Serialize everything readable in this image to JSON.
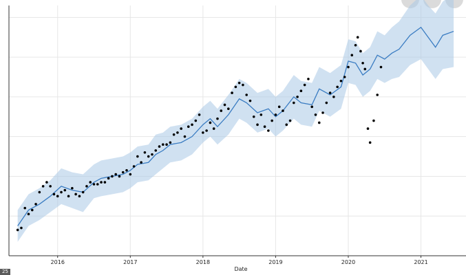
{
  "chart_data": {
    "type": "line",
    "title": "",
    "xlabel": "Date",
    "ylabel": "",
    "x_ticks": [
      "2016",
      "2017",
      "2018",
      "2019",
      "2020",
      "2021"
    ],
    "y_ticks": [
      "",
      "",
      "",
      "",
      "",
      ""
    ],
    "xlim": [
      2015.33,
      2021.62
    ],
    "ylim": [
      0,
      6.3
    ],
    "grid": true,
    "legend": "none",
    "colors": {
      "forecast": "#3a7cc2",
      "band": "#a9c9e6",
      "points": "#000000",
      "grid": "#e6e6e6"
    },
    "forecast": {
      "x": [
        2015.45,
        2015.6,
        2015.75,
        2015.9,
        2016.05,
        2016.2,
        2016.35,
        2016.5,
        2016.6,
        2016.75,
        2016.9,
        2017.0,
        2017.1,
        2017.25,
        2017.35,
        2017.45,
        2017.55,
        2017.7,
        2017.85,
        2018.0,
        2018.1,
        2018.2,
        2018.35,
        2018.5,
        2018.6,
        2018.75,
        2018.9,
        2019.0,
        2019.1,
        2019.25,
        2019.35,
        2019.5,
        2019.6,
        2019.75,
        2019.9,
        2020.0,
        2020.1,
        2020.2,
        2020.3,
        2020.4,
        2020.5,
        2020.6,
        2020.7,
        2020.85,
        2021.0,
        2021.1,
        2021.2,
        2021.3,
        2021.45
      ],
      "y": [
        0.75,
        1.15,
        1.3,
        1.5,
        1.75,
        1.65,
        1.6,
        1.85,
        1.95,
        2.0,
        2.05,
        2.15,
        2.3,
        2.35,
        2.55,
        2.65,
        2.8,
        2.85,
        3.0,
        3.3,
        3.45,
        3.25,
        3.55,
        3.95,
        3.85,
        3.6,
        3.7,
        3.5,
        3.65,
        4.0,
        3.85,
        3.8,
        4.2,
        4.05,
        4.25,
        4.9,
        4.85,
        4.55,
        4.7,
        5.05,
        4.95,
        5.1,
        5.2,
        5.55,
        5.75,
        5.5,
        5.25,
        5.55,
        5.65
      ]
    },
    "band": {
      "x": [
        2015.45,
        2015.6,
        2015.75,
        2015.9,
        2016.05,
        2016.2,
        2016.35,
        2016.5,
        2016.6,
        2016.75,
        2016.9,
        2017.0,
        2017.1,
        2017.25,
        2017.35,
        2017.45,
        2017.55,
        2017.7,
        2017.85,
        2018.0,
        2018.1,
        2018.2,
        2018.35,
        2018.5,
        2018.6,
        2018.75,
        2018.9,
        2019.0,
        2019.1,
        2019.25,
        2019.35,
        2019.5,
        2019.6,
        2019.75,
        2019.9,
        2020.0,
        2020.1,
        2020.2,
        2020.3,
        2020.4,
        2020.5,
        2020.6,
        2020.7,
        2020.85,
        2021.0,
        2021.1,
        2021.2,
        2021.3,
        2021.45
      ],
      "lower": [
        0.35,
        0.75,
        0.9,
        1.1,
        1.3,
        1.2,
        1.1,
        1.45,
        1.5,
        1.55,
        1.6,
        1.7,
        1.85,
        1.9,
        2.05,
        2.2,
        2.35,
        2.4,
        2.55,
        2.85,
        3.0,
        2.8,
        3.05,
        3.45,
        3.35,
        3.1,
        3.2,
        3.0,
        3.15,
        3.45,
        3.3,
        3.25,
        3.65,
        3.5,
        3.7,
        4.35,
        4.3,
        4.0,
        4.15,
        4.45,
        4.35,
        4.45,
        4.5,
        4.8,
        4.95,
        4.7,
        4.45,
        4.7,
        4.75
      ],
      "upper": [
        1.15,
        1.55,
        1.7,
        1.9,
        2.2,
        2.1,
        2.05,
        2.3,
        2.4,
        2.45,
        2.5,
        2.6,
        2.75,
        2.8,
        3.05,
        3.1,
        3.25,
        3.3,
        3.45,
        3.75,
        3.9,
        3.7,
        4.05,
        4.45,
        4.35,
        4.1,
        4.2,
        4.0,
        4.15,
        4.55,
        4.4,
        4.35,
        4.75,
        4.6,
        4.8,
        5.45,
        5.4,
        5.1,
        5.25,
        5.65,
        5.55,
        5.75,
        5.9,
        6.3,
        6.55,
        6.3,
        6.1,
        6.4,
        6.6
      ]
    },
    "observed": {
      "x": [
        2015.45,
        2015.5,
        2015.55,
        2015.6,
        2015.65,
        2015.7,
        2015.75,
        2015.8,
        2015.85,
        2015.9,
        2015.95,
        2016.0,
        2016.05,
        2016.1,
        2016.15,
        2016.2,
        2016.25,
        2016.3,
        2016.35,
        2016.4,
        2016.45,
        2016.5,
        2016.55,
        2016.6,
        2016.65,
        2016.7,
        2016.75,
        2016.8,
        2016.85,
        2016.9,
        2016.95,
        2017.0,
        2017.05,
        2017.1,
        2017.15,
        2017.2,
        2017.25,
        2017.3,
        2017.35,
        2017.4,
        2017.45,
        2017.5,
        2017.55,
        2017.6,
        2017.65,
        2017.7,
        2017.75,
        2017.8,
        2017.85,
        2017.9,
        2017.95,
        2018.0,
        2018.05,
        2018.1,
        2018.15,
        2018.2,
        2018.25,
        2018.3,
        2018.35,
        2018.4,
        2018.45,
        2018.5,
        2018.55,
        2018.6,
        2018.65,
        2018.7,
        2018.75,
        2018.8,
        2018.85,
        2018.9,
        2018.95,
        2019.0,
        2019.05,
        2019.1,
        2019.15,
        2019.2,
        2019.25,
        2019.3,
        2019.35,
        2019.4,
        2019.45,
        2019.5,
        2019.55,
        2019.6,
        2019.65,
        2019.7,
        2019.75,
        2019.8,
        2019.85,
        2019.9,
        2019.95,
        2020.0,
        2020.05,
        2020.1,
        2020.13,
        2020.17,
        2020.2,
        2020.23,
        2020.27,
        2020.3,
        2020.35,
        2020.4,
        2020.45
      ],
      "y": [
        0.65,
        0.7,
        1.2,
        1.05,
        1.15,
        1.3,
        1.6,
        1.75,
        1.85,
        1.75,
        1.55,
        1.5,
        1.6,
        1.65,
        1.5,
        1.7,
        1.55,
        1.5,
        1.6,
        1.75,
        1.85,
        1.8,
        1.8,
        1.85,
        1.85,
        1.95,
        2.0,
        2.05,
        2.0,
        2.1,
        2.15,
        2.05,
        2.25,
        2.5,
        2.35,
        2.6,
        2.5,
        2.55,
        2.65,
        2.75,
        2.8,
        2.8,
        2.85,
        3.05,
        3.1,
        3.2,
        3.0,
        3.25,
        3.3,
        3.4,
        3.55,
        3.1,
        3.15,
        3.35,
        3.2,
        3.45,
        3.65,
        3.8,
        3.7,
        4.1,
        4.25,
        4.35,
        4.3,
        4.05,
        3.9,
        3.5,
        3.3,
        3.55,
        3.25,
        3.15,
        3.4,
        3.55,
        3.75,
        3.65,
        3.3,
        3.4,
        3.85,
        4.0,
        4.15,
        4.3,
        4.45,
        3.75,
        3.55,
        3.35,
        3.6,
        3.85,
        4.1,
        4.0,
        4.25,
        4.4,
        4.5,
        4.75,
        5.05,
        5.3,
        5.5,
        5.15,
        4.85,
        4.7,
        3.2,
        2.85,
        3.4,
        4.05,
        4.75
      ]
    }
  },
  "badge": {
    "text": "25"
  }
}
